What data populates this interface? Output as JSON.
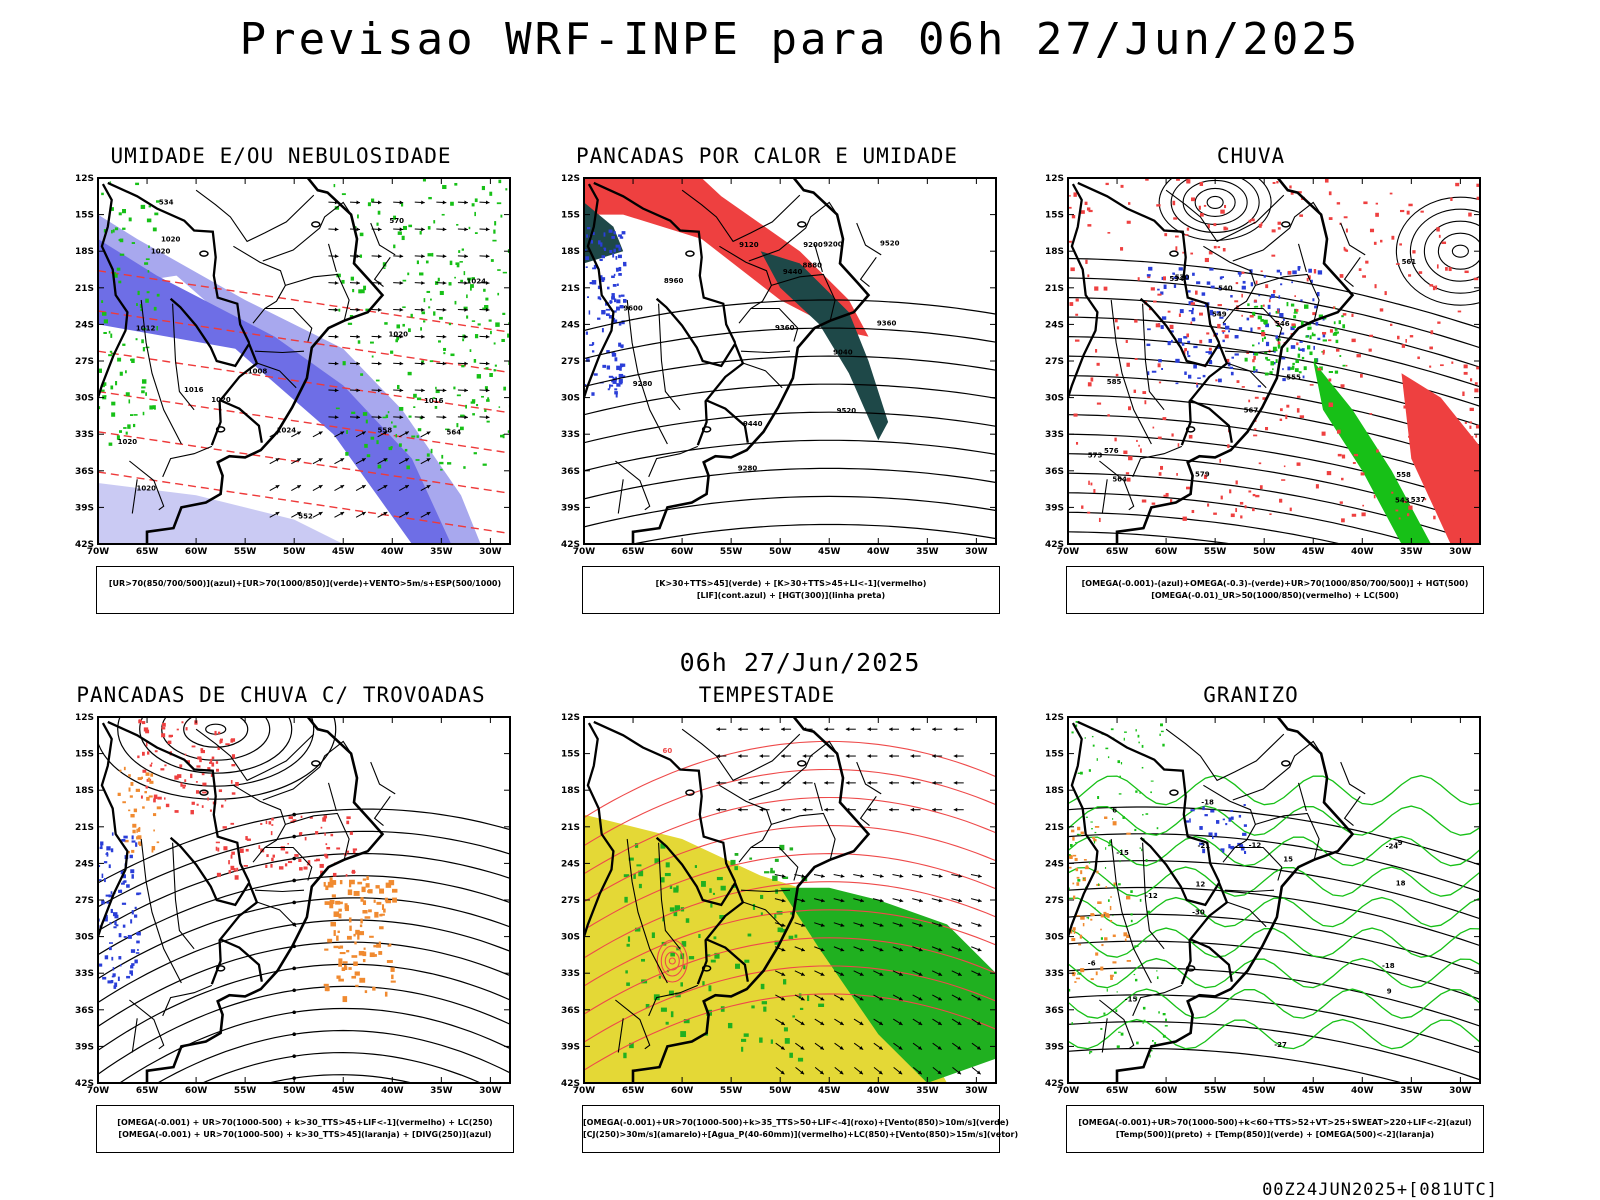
{
  "page": {
    "title": "Previsao WRF-INPE  para 06h 27/Jun/2025",
    "mid_title": "06h 27/Jun/2025",
    "footer": "00Z24JUN2025+[081UTC]"
  },
  "axes": {
    "lat_labels": [
      "12S",
      "15S",
      "18S",
      "21S",
      "24S",
      "27S",
      "30S",
      "33S",
      "36S",
      "39S",
      "42S"
    ],
    "lon_labels": [
      "70W",
      "65W",
      "60W",
      "55W",
      "50W",
      "45W",
      "40W",
      "35W",
      "30W"
    ]
  },
  "panels": [
    {
      "id": "umidade",
      "title": "UMIDADE E/OU NEBULOSIDADE",
      "legend": [
        "[UR>70(850/700/500)](azul)+[UR>70(1000/850)](verde)+VENTO>5m/s+ESP(500/1000)"
      ],
      "labels": [
        "1020",
        "1016",
        "1016",
        "1024",
        "1020",
        "1020",
        "1024",
        "1020",
        "1020",
        "1012",
        "1020",
        "1008",
        "570",
        "564",
        "558",
        "534",
        "552"
      ]
    },
    {
      "id": "pancadas_calor",
      "title": "PANCADAS POR CALOR E UMIDADE",
      "legend": [
        "[K>30+TTS>45](verde) + [K>30+TTS>45+LI<-1](vermelho)",
        "[LIF](cont.azul) + [HGT(300)](linha preta)"
      ],
      "labels": [
        "9600",
        "9520",
        "9440",
        "9360",
        "9280",
        "9200",
        "9120",
        "9040",
        "8960",
        "8880",
        "9520",
        "9440",
        "9360",
        "9280",
        "9200"
      ]
    },
    {
      "id": "chuva",
      "title": "CHUVA",
      "legend": [
        "[OMEGA(-0.001)-(azul)+OMEGA(-0.3)-(verde)+UR>70(1000/850/700/500)] + HGT(500)",
        "[OMEGA(-0.01)_UR>50(1000/850)(vermelho) + LC(500)"
      ],
      "labels": [
        "573",
        "570",
        "567",
        "564",
        "561",
        "558",
        "555",
        "549",
        "546",
        "543",
        "540",
        "537",
        "534",
        "576",
        "579",
        "585"
      ]
    },
    {
      "id": "trovoadas",
      "title": "PANCADAS DE CHUVA C/ TROVOADAS",
      "legend": [
        "[OMEGA(-0.001) + UR>70(1000-500) + k>30_TTS>45+LIF<-1](vermelho) + LC(250)",
        "[OMEGA(-0.001) + UR>70(1000-500) + k>30_TTS>45](laranja) + [DIVG(250)](azul)"
      ],
      "labels": []
    },
    {
      "id": "tempestade",
      "title": "TEMPESTADE",
      "legend": [
        "[OMEGA(-0.001)+UR>70(1000-500)+k>35_TTS>50+LIF<-4](roxo)+[Vento(850)>10m/s](verde)",
        "[CJ(250)>30m/s](amarelo)+[Agua_P(40-60mm)](vermelho)+LC(850)+[Vento(850)>15m/s](vetor)"
      ],
      "labels": [
        "60"
      ]
    },
    {
      "id": "granizo",
      "title": "GRANIZO",
      "legend": [
        "[OMEGA(-0.001)+UR>70(1000-500)+k<60+TTS>52+VT>25+SWEAT>220+LIF<-2](azul)",
        "[Temp(500)](preto) + [Temp(850)](verde) + [OMEGA(500)<-2](laranja)"
      ],
      "labels": [
        "-6",
        "-9",
        "-12",
        "-15",
        "-18",
        "-21",
        "-24",
        "-27",
        "-30",
        "12",
        "15",
        "18",
        "9",
        "6",
        "-12",
        "-15",
        "-18"
      ]
    }
  ]
}
